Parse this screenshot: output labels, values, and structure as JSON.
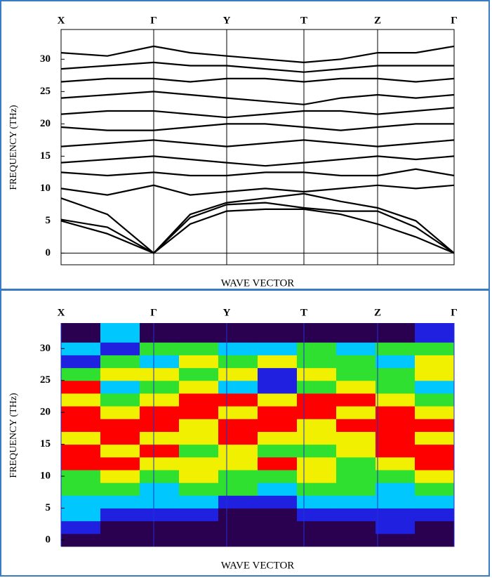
{
  "chart_data": [
    {
      "type": "line",
      "categories": [
        "X",
        null,
        "Γ",
        null,
        "Y",
        null,
        "T",
        null,
        "Z",
        null,
        "Γ"
      ],
      "ylabel": "FREQUENCY (THz)",
      "xlabel": "WAVE VECTOR",
      "ylim": [
        -1.8,
        34.6
      ],
      "yticks": [
        0,
        5,
        10,
        15,
        20,
        25,
        30
      ],
      "color": "#000000",
      "series": [
        {
          "values": [
            5,
            3,
            0,
            4.5,
            6.5,
            6.8,
            6.8,
            6,
            4.5,
            2.5,
            0
          ]
        },
        {
          "values": [
            5.2,
            4,
            0,
            5.5,
            7.5,
            7.8,
            7,
            6.5,
            6.5,
            4,
            0
          ]
        },
        {
          "values": [
            8.5,
            6,
            0,
            6,
            7.8,
            8.5,
            9.2,
            8,
            7,
            5,
            0
          ]
        },
        {
          "values": [
            10,
            9,
            10.5,
            9,
            9.5,
            10,
            9.5,
            10,
            10.5,
            10,
            10.5
          ]
        },
        {
          "values": [
            12.5,
            12,
            12.5,
            12,
            12,
            12.5,
            12.5,
            12,
            12,
            13,
            12
          ]
        },
        {
          "values": [
            14,
            14.5,
            15,
            14.5,
            14,
            13.5,
            14,
            14.5,
            15,
            14.5,
            15
          ]
        },
        {
          "values": [
            16.5,
            17,
            17.5,
            17,
            16.5,
            17,
            17.5,
            17,
            16.5,
            17,
            17.5
          ]
        },
        {
          "values": [
            19.5,
            19,
            19,
            19.5,
            20,
            20,
            19.5,
            19,
            19.5,
            20,
            20
          ]
        },
        {
          "values": [
            21.5,
            22,
            22,
            21.5,
            21,
            21.5,
            22,
            22,
            21.5,
            22,
            22.5
          ]
        },
        {
          "values": [
            24,
            24.5,
            25,
            24.5,
            24,
            23.5,
            23,
            24,
            24.5,
            24,
            24.5
          ]
        },
        {
          "values": [
            26.5,
            27,
            27,
            26.5,
            27,
            27,
            26.5,
            27,
            27,
            26.5,
            27
          ]
        },
        {
          "values": [
            28.5,
            29,
            29.5,
            29,
            29,
            28.5,
            28,
            28.5,
            29,
            29,
            29
          ]
        },
        {
          "values": [
            31,
            30.5,
            32,
            31,
            30.5,
            30,
            29.5,
            30,
            31,
            31,
            32
          ]
        }
      ]
    },
    {
      "type": "heatmap",
      "categories": [
        "X",
        "Γ",
        "Y",
        "T",
        "Z",
        "Γ"
      ],
      "ylabel": "FREQUENCY (THz)",
      "xlabel": "WAVE VECTOR",
      "ylim": [
        -1,
        34
      ],
      "yticks": [
        0,
        5,
        10,
        15,
        20,
        25,
        30
      ],
      "ybins": [
        -1,
        1,
        3,
        5,
        7,
        9,
        11,
        13,
        15,
        17,
        19,
        21,
        23,
        25,
        27,
        29,
        31,
        34
      ],
      "colors": [
        "#2a0050",
        "#2020e0",
        "#00c8ff",
        "#30e030",
        "#f0f000",
        "#ff0000"
      ],
      "z": [
        [
          0,
          0,
          0,
          0,
          0,
          0,
          0,
          0,
          0,
          0
        ],
        [
          1,
          0,
          0,
          0,
          0,
          0,
          0,
          0,
          1,
          0
        ],
        [
          2,
          1,
          1,
          1,
          0,
          0,
          1,
          1,
          1,
          1
        ],
        [
          2,
          2,
          2,
          2,
          1,
          1,
          2,
          2,
          2,
          2
        ],
        [
          3,
          3,
          2,
          3,
          3,
          2,
          3,
          3,
          2,
          3
        ],
        [
          3,
          4,
          3,
          4,
          3,
          3,
          4,
          3,
          3,
          4
        ],
        [
          5,
          5,
          4,
          4,
          4,
          5,
          4,
          3,
          4,
          5
        ],
        [
          5,
          4,
          5,
          3,
          4,
          3,
          3,
          4,
          5,
          5
        ],
        [
          4,
          5,
          4,
          4,
          5,
          4,
          4,
          4,
          5,
          4
        ],
        [
          5,
          5,
          5,
          4,
          5,
          5,
          4,
          5,
          5,
          5
        ],
        [
          5,
          4,
          5,
          5,
          4,
          5,
          5,
          4,
          5,
          4
        ],
        [
          4,
          3,
          4,
          5,
          5,
          4,
          5,
          5,
          4,
          3
        ],
        [
          5,
          2,
          3,
          4,
          2,
          1,
          3,
          4,
          3,
          2
        ],
        [
          3,
          4,
          4,
          3,
          4,
          1,
          4,
          3,
          3,
          4
        ],
        [
          1,
          3,
          2,
          4,
          3,
          4,
          3,
          3,
          2,
          4
        ],
        [
          2,
          1,
          3,
          3,
          2,
          2,
          3,
          2,
          3,
          3
        ],
        [
          0,
          2,
          0,
          0,
          0,
          0,
          0,
          0,
          0,
          1
        ]
      ]
    }
  ]
}
